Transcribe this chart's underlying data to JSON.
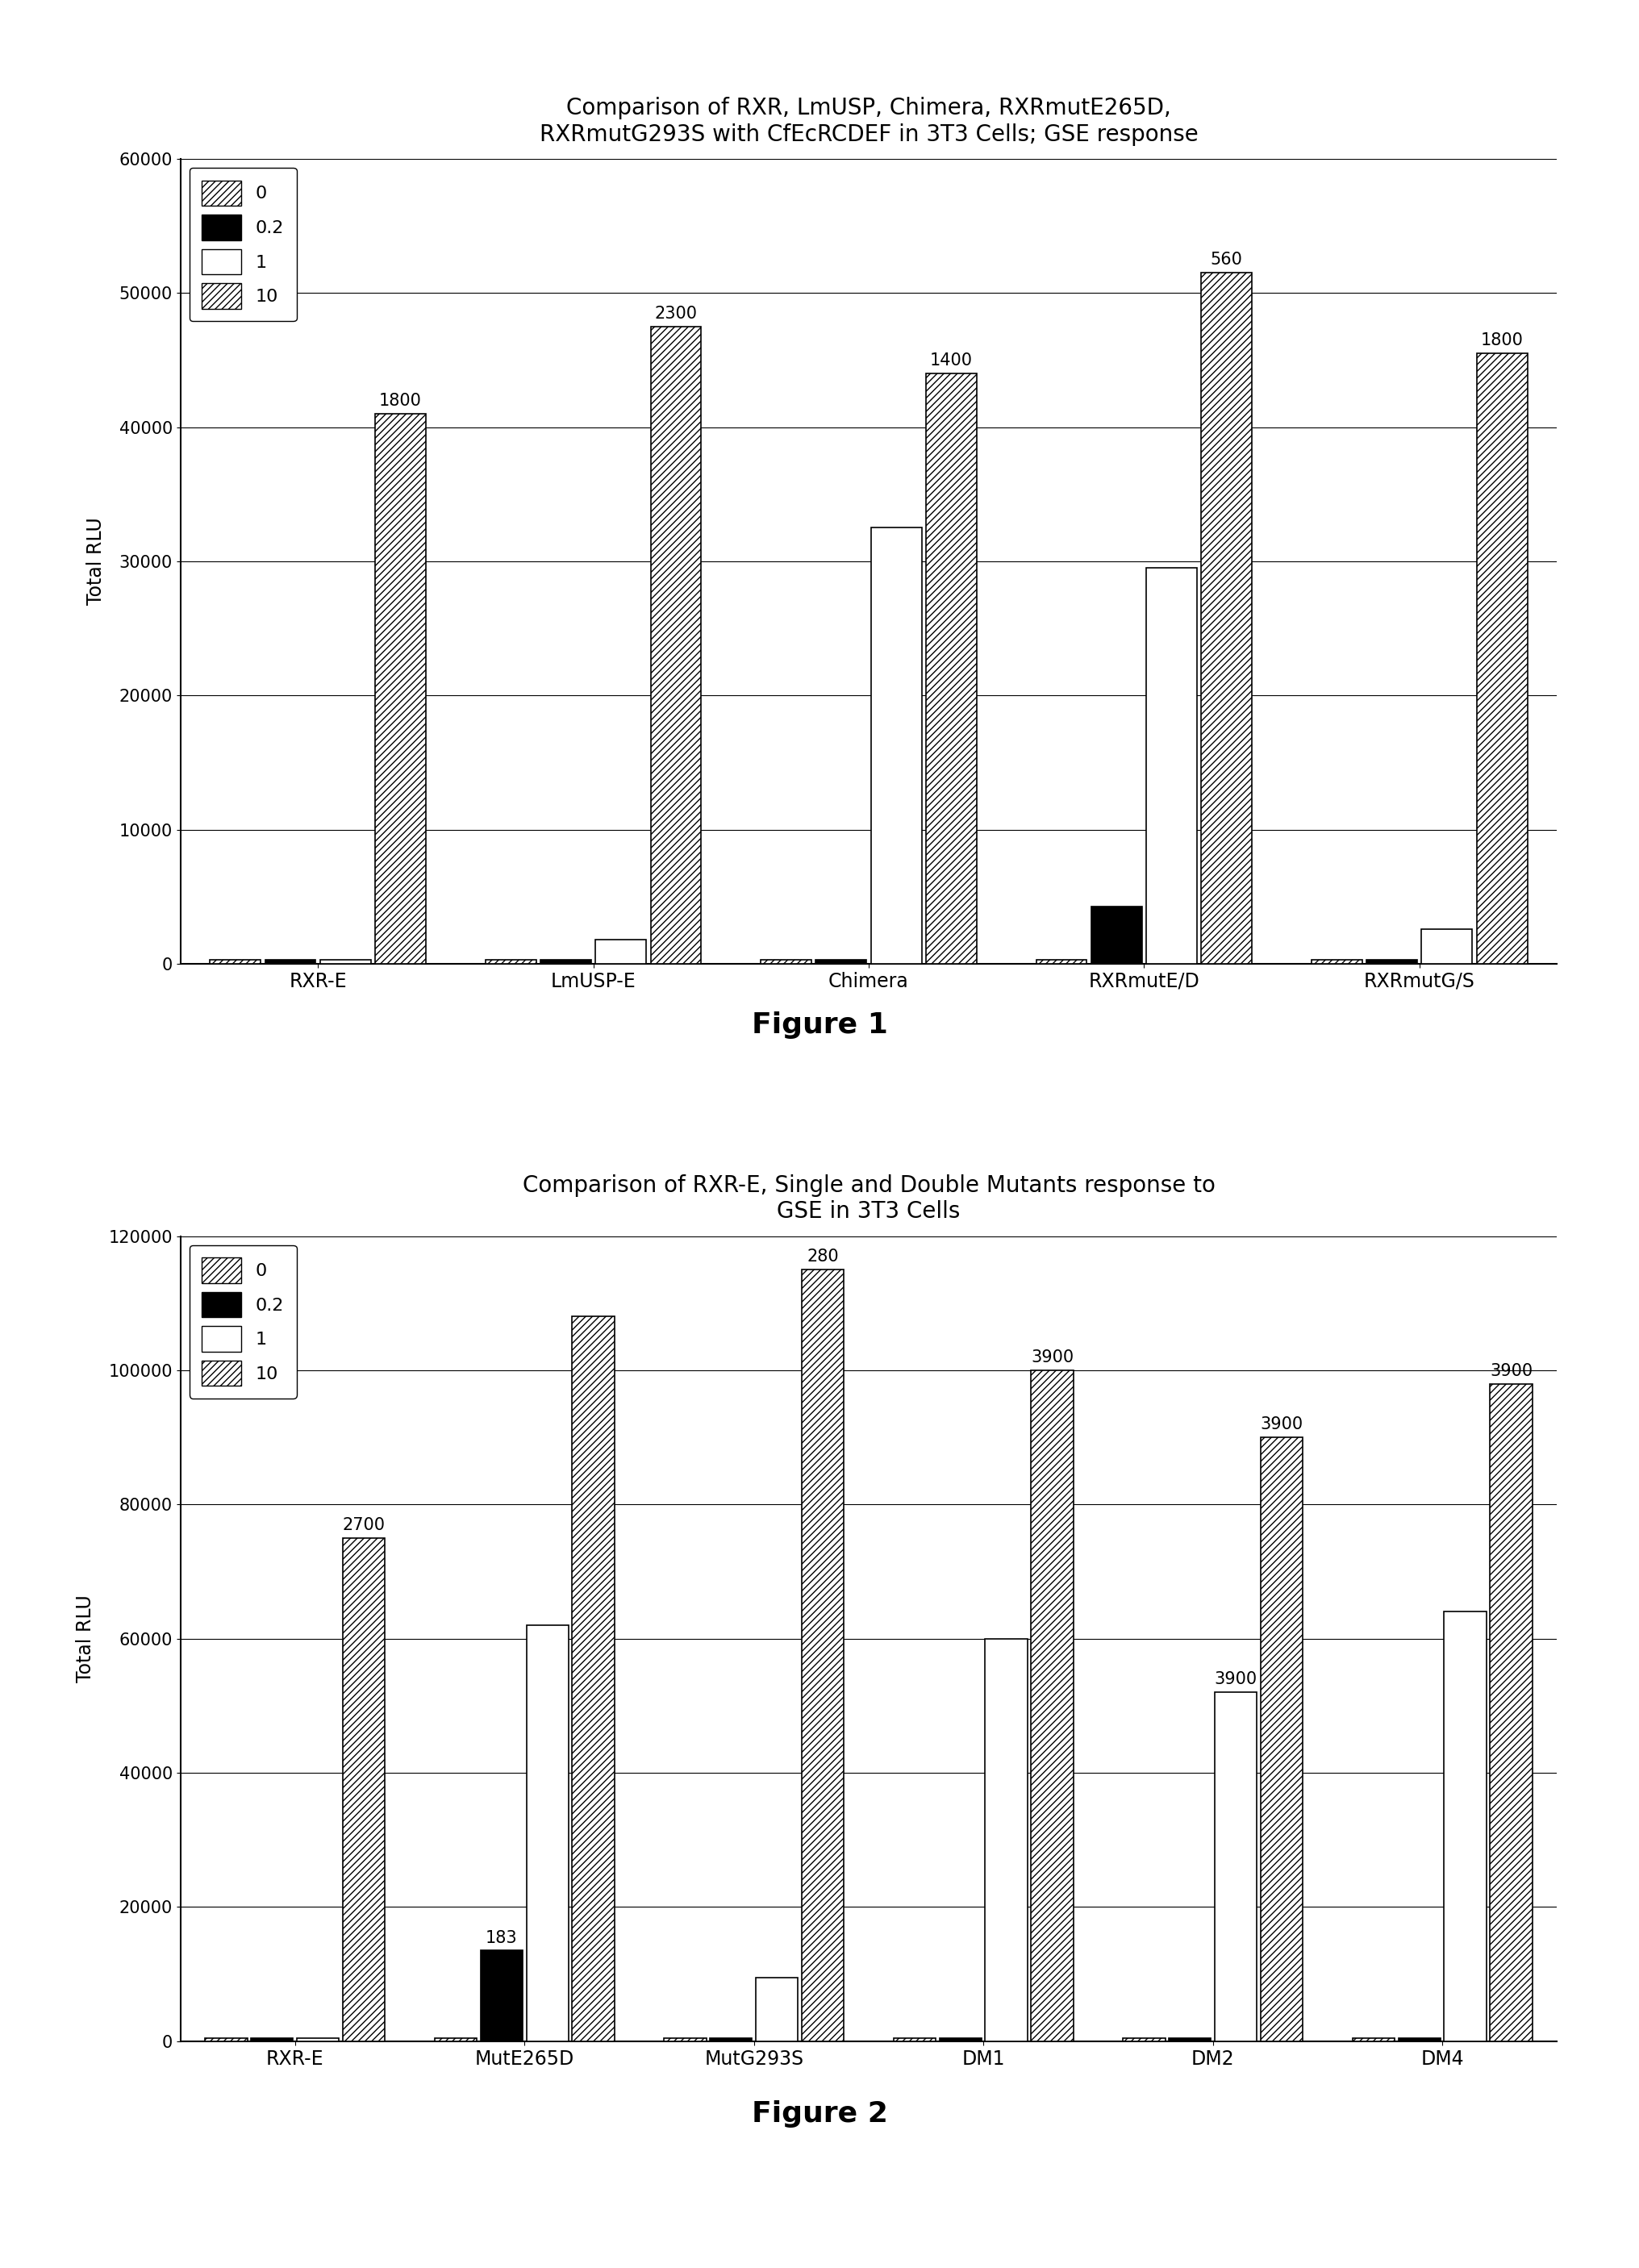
{
  "fig1": {
    "title": "Comparison of RXR, LmUSP, Chimera, RXRmutE265D,\nRXRmutG293S with CfEcRCDEF in 3T3 Cells; GSE response",
    "ylabel": "Total RLU",
    "categories": [
      "RXR-E",
      "LmUSP-E",
      "Chimera",
      "RXRmutE/D",
      "RXRmutG/S"
    ],
    "legend_labels": [
      "0",
      "0.2",
      "1",
      "10"
    ],
    "ylim": [
      0,
      60000
    ],
    "yticks": [
      0,
      10000,
      20000,
      30000,
      40000,
      50000,
      60000
    ],
    "bar_data": {
      "RXR-E": [
        300,
        300,
        300,
        41000
      ],
      "LmUSP-E": [
        300,
        300,
        1800,
        47500
      ],
      "Chimera": [
        300,
        300,
        32500,
        44000
      ],
      "RXRmutE/D": [
        300,
        4300,
        29500,
        51500
      ],
      "RXRmutG/S": [
        300,
        300,
        2600,
        45500
      ]
    },
    "bar_labels": {
      "RXR-E": [
        "",
        "",
        "",
        "1800"
      ],
      "LmUSP-E": [
        "",
        "",
        "",
        "2300"
      ],
      "Chimera": [
        "",
        "",
        "",
        "1400"
      ],
      "RXRmutE/D": [
        "",
        "",
        "",
        "560"
      ],
      "RXRmutG/S": [
        "",
        "",
        "",
        "1800"
      ]
    }
  },
  "fig2": {
    "title": "Comparison of RXR-E, Single and Double Mutants response to\nGSE in 3T3 Cells",
    "ylabel": "Total RLU",
    "categories": [
      "RXR-E",
      "MutE265D",
      "MutG293S",
      "DM1",
      "DM2",
      "DM4"
    ],
    "legend_labels": [
      "0",
      "0.2",
      "1",
      "10"
    ],
    "ylim": [
      0,
      120000
    ],
    "yticks": [
      0,
      20000,
      40000,
      60000,
      80000,
      100000,
      120000
    ],
    "bar_data": {
      "RXR-E": [
        500,
        500,
        500,
        75000
      ],
      "MutE265D": [
        500,
        13500,
        62000,
        108000
      ],
      "MutG293S": [
        500,
        500,
        9500,
        115000
      ],
      "DM1": [
        500,
        500,
        60000,
        100000
      ],
      "DM2": [
        500,
        500,
        52000,
        90000
      ],
      "DM4": [
        500,
        500,
        64000,
        98000
      ]
    },
    "bar_labels": {
      "RXR-E": [
        "",
        "",
        "",
        "2700"
      ],
      "MutE265D": [
        "",
        "183",
        "",
        ""
      ],
      "MutG293S": [
        "",
        "",
        "",
        "280"
      ],
      "DM1": [
        "",
        "",
        "",
        "3900"
      ],
      "DM2": [
        "",
        "",
        "3900",
        "3900"
      ],
      "DM4": [
        "",
        "",
        "",
        "3900"
      ]
    }
  },
  "hatch_patterns": [
    "////",
    "",
    "",
    "////"
  ],
  "bar_facecolors": [
    "white",
    "black",
    "white",
    "white"
  ],
  "bar_edgecolor": "black",
  "figure_label1": "Figure 1",
  "figure_label2": "Figure 2",
  "background_color": "white"
}
